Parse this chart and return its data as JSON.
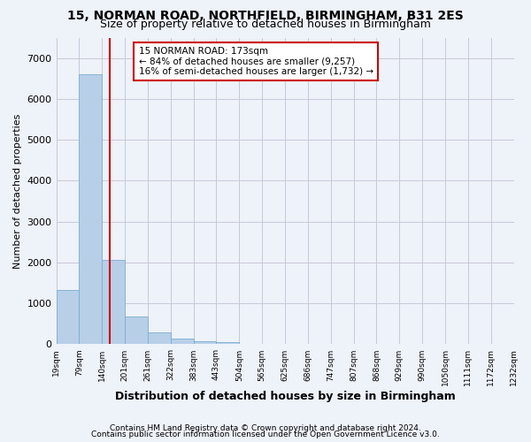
{
  "title": "15, NORMAN ROAD, NORTHFIELD, BIRMINGHAM, B31 2ES",
  "subtitle": "Size of property relative to detached houses in Birmingham",
  "xlabel": "Distribution of detached houses by size in Birmingham",
  "ylabel": "Number of detached properties",
  "footnote1": "Contains HM Land Registry data © Crown copyright and database right 2024.",
  "footnote2": "Contains public sector information licensed under the Open Government Licence v3.0.",
  "annotation_title": "15 NORMAN ROAD: 173sqm",
  "annotation_line1": "← 84% of detached houses are smaller (9,257)",
  "annotation_line2": "16% of semi-detached houses are larger (1,732) →",
  "property_size_bin": 2.33,
  "bar_color": "#b8cfe8",
  "bar_edge_color": "#7aadd4",
  "vline_color": "#cc0000",
  "annotation_box_color": "#cc0000",
  "bg_color": "#eef2f9",
  "grid_color": "#c8c8d8",
  "bin_labels": [
    "19sqm",
    "79sqm",
    "140sqm",
    "201sqm",
    "261sqm",
    "322sqm",
    "383sqm",
    "443sqm",
    "504sqm",
    "565sqm",
    "625sqm",
    "686sqm",
    "747sqm",
    "807sqm",
    "868sqm",
    "929sqm",
    "990sqm",
    "1050sqm",
    "1111sqm",
    "1172sqm",
    "1232sqm"
  ],
  "bar_heights": [
    1320,
    6600,
    2060,
    680,
    290,
    130,
    80,
    50,
    0,
    0,
    0,
    0,
    0,
    0,
    0,
    0,
    0,
    0,
    0,
    0
  ],
  "ylim": [
    0,
    7500
  ],
  "yticks": [
    0,
    1000,
    2000,
    3000,
    4000,
    5000,
    6000,
    7000
  ]
}
